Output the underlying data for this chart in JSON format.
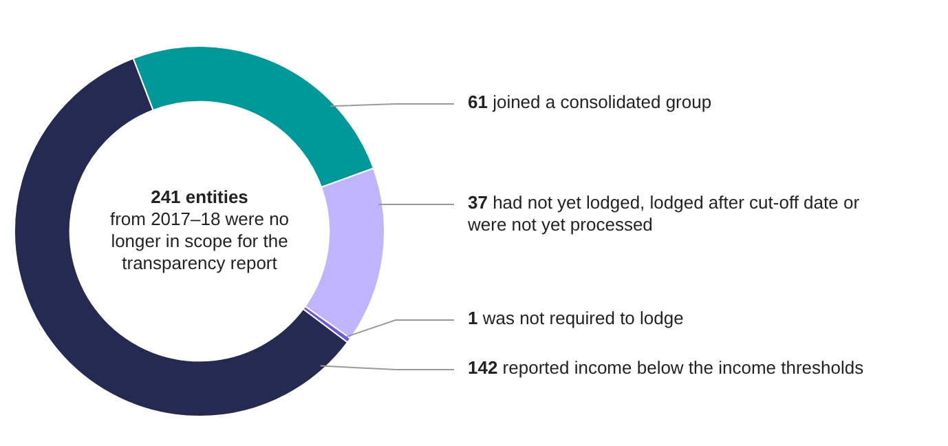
{
  "chart_data": {
    "type": "donut",
    "title": "241 entities",
    "subtitle": "from 2017–18 were no longer in scope for the transparency report",
    "categories": [
      "joined a consolidated group",
      "had not yet lodged, lodged after cut-off date or were not yet processed",
      "was not required to lodge",
      "reported income below the income thresholds"
    ],
    "values": [
      61,
      37,
      1,
      142
    ],
    "colors": [
      "#00999a",
      "#c1b4fe",
      "#6a5ae6",
      "#252a52"
    ],
    "data_labels": true,
    "legend": false
  }
}
